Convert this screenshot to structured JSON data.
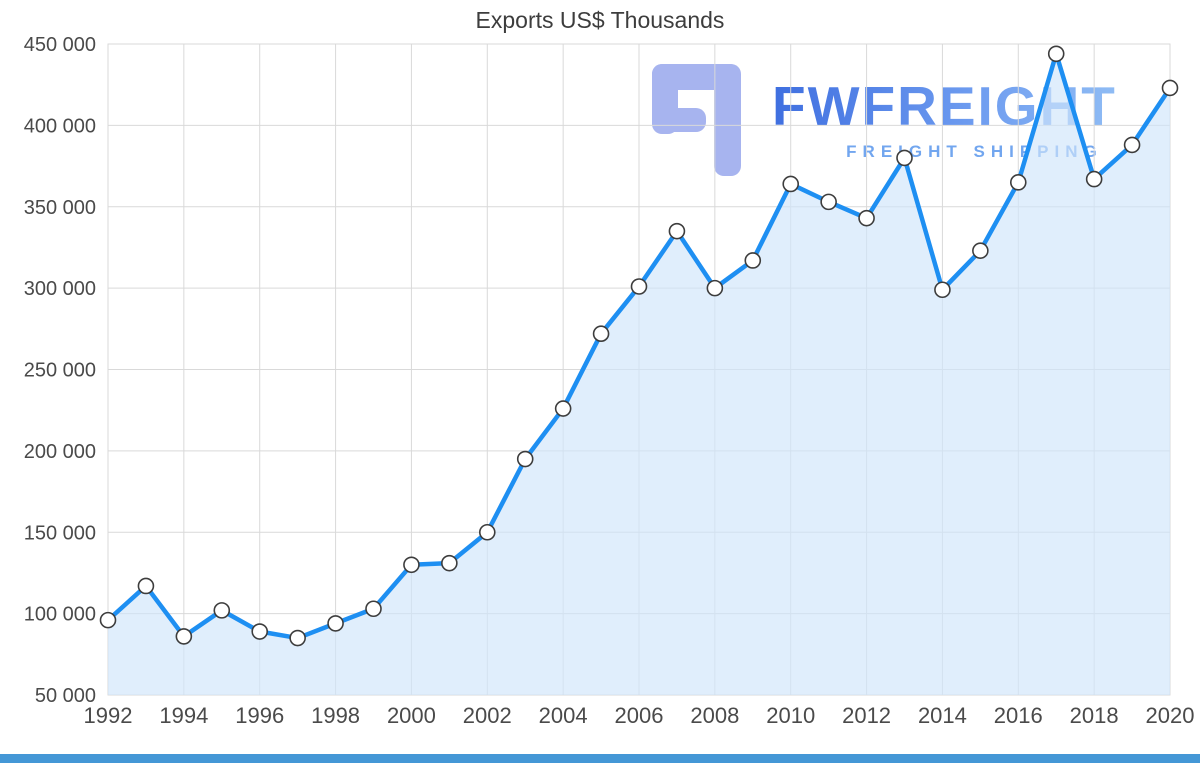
{
  "chart_data": {
    "type": "area",
    "title": "Exports US$ Thousands",
    "x": [
      1992,
      1993,
      1994,
      1995,
      1996,
      1997,
      1998,
      1999,
      2000,
      2001,
      2002,
      2003,
      2004,
      2005,
      2006,
      2007,
      2008,
      2009,
      2010,
      2011,
      2012,
      2013,
      2014,
      2015,
      2016,
      2017,
      2018,
      2019,
      2020
    ],
    "series": [
      {
        "name": "Exports US$ Thousands",
        "values": [
          96000,
          117000,
          86000,
          102000,
          89000,
          85000,
          94000,
          103000,
          130000,
          131000,
          150000,
          195000,
          226000,
          272000,
          301000,
          335000,
          300000,
          317000,
          364000,
          353000,
          343000,
          380000,
          299000,
          323000,
          365000,
          444000,
          367000,
          388000,
          423000
        ]
      }
    ],
    "ylim": [
      50000,
      450000
    ],
    "ytick_step": 50000,
    "y_tick_labels": [
      "50 000",
      "100 000",
      "150 000",
      "200 000",
      "250 000",
      "300 000",
      "350 000",
      "400 000",
      "450 000"
    ],
    "x_tick_labels": [
      "1992",
      "1994",
      "1996",
      "1998",
      "2000",
      "2002",
      "2004",
      "2006",
      "2008",
      "2010",
      "2012",
      "2014",
      "2016",
      "2018",
      "2020"
    ],
    "grid": true,
    "legend": "none",
    "marker": "circle-white",
    "colors": {
      "line": "#1e8ff2",
      "fill": "#cfe5fa",
      "marker_fill": "#ffffff",
      "marker_stroke": "#3d3d3d",
      "grid": "#d9d9d9",
      "axis_text": "#4a4a4a",
      "title_text": "#3d3d3d"
    }
  },
  "watermark": {
    "brand": "FWFREIGHT",
    "tagline": "FREIGHT SHIPPING",
    "logo_color": "#a7b4ef",
    "brand_color": "#4d7ee8",
    "tagline_color": "#72a6ef"
  },
  "footer": {
    "bar_color": "#4497d6"
  }
}
